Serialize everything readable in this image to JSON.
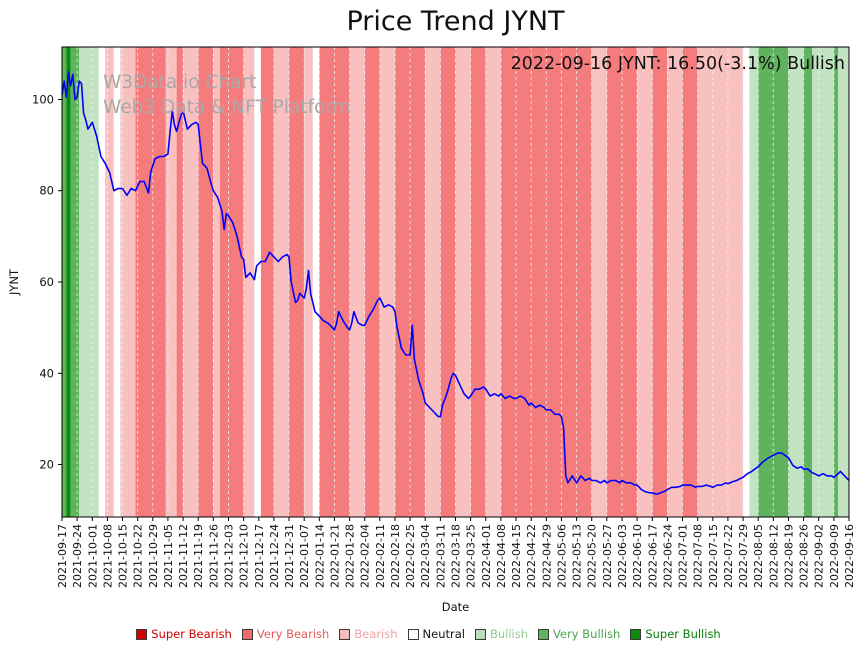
{
  "watermark": {
    "line1": "W3Data.io Chart",
    "line2": "Web3 Data & NFT Platform"
  },
  "annotation": "2022-09-16 JYNT: 16.50(-3.1%) Bullish",
  "chart_data": {
    "type": "line",
    "title": "Price Trend JYNT",
    "xlabel": "Date",
    "ylabel": "JYNT",
    "ylim": [
      8.5,
      111.5
    ],
    "yticks": [
      20,
      40,
      60,
      80,
      100
    ],
    "x_max": 364,
    "x_tick_interval_days": 7,
    "grid": "dashed-vertical",
    "legend_position": "bottom",
    "x_tick_labels": [
      "2021-09-17",
      "2021-09-24",
      "2021-10-01",
      "2021-10-08",
      "2021-10-15",
      "2021-10-22",
      "2021-10-29",
      "2021-11-05",
      "2021-11-12",
      "2021-11-19",
      "2021-11-26",
      "2021-12-03",
      "2021-12-10",
      "2021-12-17",
      "2021-12-24",
      "2021-12-31",
      "2022-01-07",
      "2022-01-14",
      "2022-01-21",
      "2022-01-28",
      "2022-02-04",
      "2022-02-11",
      "2022-02-18",
      "2022-02-25",
      "2022-03-04",
      "2022-03-11",
      "2022-03-18",
      "2022-03-25",
      "2022-04-01",
      "2022-04-08",
      "2022-04-15",
      "2022-04-22",
      "2022-04-29",
      "2022-05-06",
      "2022-05-13",
      "2022-05-20",
      "2022-05-27",
      "2022-06-03",
      "2022-06-10",
      "2022-06-17",
      "2022-06-24",
      "2022-07-01",
      "2022-07-08",
      "2022-07-15",
      "2022-07-22",
      "2022-07-29",
      "2022-08-05",
      "2022-08-12",
      "2022-08-19",
      "2022-08-26",
      "2022-09-02",
      "2022-09-09",
      "2022-09-16"
    ],
    "series": [
      {
        "name": "JYNT",
        "color": "#0000ff",
        "points": [
          [
            0,
            101
          ],
          [
            1,
            104
          ],
          [
            2,
            100.5
          ],
          [
            3,
            106
          ],
          [
            4,
            103
          ],
          [
            5,
            105.5
          ],
          [
            6,
            100
          ],
          [
            7,
            100.5
          ],
          [
            8,
            104
          ],
          [
            9,
            103.5
          ],
          [
            10,
            97
          ],
          [
            11,
            95.5
          ],
          [
            12,
            93.5
          ],
          [
            14,
            95
          ],
          [
            16,
            92
          ],
          [
            18,
            87.5
          ],
          [
            20,
            86
          ],
          [
            22,
            84
          ],
          [
            24,
            80
          ],
          [
            26,
            80.5
          ],
          [
            28,
            80.5
          ],
          [
            30,
            79
          ],
          [
            32,
            80.5
          ],
          [
            34,
            80
          ],
          [
            36,
            82
          ],
          [
            38,
            82
          ],
          [
            40,
            79.5
          ],
          [
            41,
            84
          ],
          [
            43,
            87
          ],
          [
            45,
            87.5
          ],
          [
            47,
            87.5
          ],
          [
            49,
            88
          ],
          [
            50,
            93
          ],
          [
            51,
            97.5
          ],
          [
            52,
            94.5
          ],
          [
            53,
            93
          ],
          [
            55,
            96.5
          ],
          [
            56,
            97.5
          ],
          [
            58,
            93.5
          ],
          [
            60,
            94.5
          ],
          [
            62,
            95
          ],
          [
            63,
            94.5
          ],
          [
            65,
            86
          ],
          [
            67,
            85
          ],
          [
            69,
            81.5
          ],
          [
            70,
            80
          ],
          [
            72,
            78.5
          ],
          [
            74,
            75.5
          ],
          [
            75,
            71.5
          ],
          [
            76,
            75
          ],
          [
            77,
            74.5
          ],
          [
            79,
            73
          ],
          [
            81,
            70
          ],
          [
            83,
            65.5
          ],
          [
            84,
            65
          ],
          [
            85,
            61
          ],
          [
            87,
            62
          ],
          [
            89,
            60.5
          ],
          [
            90,
            63.5
          ],
          [
            92,
            64.5
          ],
          [
            94,
            64.5
          ],
          [
            96,
            66.5
          ],
          [
            98,
            65.5
          ],
          [
            100,
            64.5
          ],
          [
            102,
            65.5
          ],
          [
            104,
            66
          ],
          [
            105,
            65.5
          ],
          [
            106,
            60
          ],
          [
            108,
            55.5
          ],
          [
            109,
            56
          ],
          [
            110,
            57.5
          ],
          [
            112,
            56.5
          ],
          [
            113,
            58.5
          ],
          [
            114,
            62.5
          ],
          [
            115,
            57.5
          ],
          [
            117,
            53.5
          ],
          [
            119,
            52.5
          ],
          [
            121,
            51.5
          ],
          [
            123,
            51
          ],
          [
            125,
            50
          ],
          [
            126,
            49.5
          ],
          [
            127,
            51
          ],
          [
            128,
            53.5
          ],
          [
            130,
            51.5
          ],
          [
            132,
            50
          ],
          [
            133,
            49.5
          ],
          [
            134,
            51
          ],
          [
            135,
            53.5
          ],
          [
            137,
            51
          ],
          [
            139,
            50.5
          ],
          [
            140,
            50.5
          ],
          [
            142,
            52.5
          ],
          [
            144,
            54
          ],
          [
            146,
            56
          ],
          [
            147,
            56.5
          ],
          [
            149,
            54.5
          ],
          [
            151,
            55
          ],
          [
            153,
            54.5
          ],
          [
            154,
            53.5
          ],
          [
            155,
            50
          ],
          [
            157,
            45.5
          ],
          [
            159,
            44
          ],
          [
            161,
            44
          ],
          [
            162,
            50.5
          ],
          [
            163,
            43
          ],
          [
            165,
            38.5
          ],
          [
            167,
            35.5
          ],
          [
            168,
            33.5
          ],
          [
            170,
            32.5
          ],
          [
            172,
            31.5
          ],
          [
            174,
            30.5
          ],
          [
            175,
            30.5
          ],
          [
            176,
            33
          ],
          [
            178,
            35.5
          ],
          [
            180,
            39
          ],
          [
            181,
            40
          ],
          [
            182,
            39.5
          ],
          [
            184,
            37.5
          ],
          [
            186,
            35.5
          ],
          [
            188,
            34.5
          ],
          [
            189,
            35
          ],
          [
            191,
            36.5
          ],
          [
            193,
            36.5
          ],
          [
            195,
            37
          ],
          [
            196,
            36.5
          ],
          [
            198,
            35
          ],
          [
            200,
            35.5
          ],
          [
            202,
            35
          ],
          [
            203,
            35.5
          ],
          [
            205,
            34.5
          ],
          [
            207,
            35
          ],
          [
            209,
            34.5
          ],
          [
            210,
            34.5
          ],
          [
            212,
            35
          ],
          [
            214,
            34.5
          ],
          [
            216,
            33
          ],
          [
            217,
            33.5
          ],
          [
            219,
            32.5
          ],
          [
            221,
            33
          ],
          [
            223,
            32.5
          ],
          [
            224,
            32
          ],
          [
            226,
            32
          ],
          [
            228,
            31
          ],
          [
            230,
            31
          ],
          [
            231,
            30.5
          ],
          [
            232,
            28
          ],
          [
            233,
            17.5
          ],
          [
            234,
            16
          ],
          [
            236,
            17.5
          ],
          [
            238,
            16
          ],
          [
            240,
            17.5
          ],
          [
            242,
            16.5
          ],
          [
            244,
            17
          ],
          [
            245,
            16.5
          ],
          [
            247,
            16.5
          ],
          [
            249,
            16
          ],
          [
            251,
            16.5
          ],
          [
            252,
            16
          ],
          [
            254,
            16.5
          ],
          [
            256,
            16.5
          ],
          [
            258,
            16
          ],
          [
            259,
            16.5
          ],
          [
            261,
            16
          ],
          [
            263,
            16
          ],
          [
            265,
            15.5
          ],
          [
            266,
            15.5
          ],
          [
            268,
            14.5
          ],
          [
            270,
            14
          ],
          [
            272,
            13.8
          ],
          [
            273,
            13.8
          ],
          [
            275,
            13.5
          ],
          [
            277,
            13.8
          ],
          [
            279,
            14.2
          ],
          [
            280,
            14.5
          ],
          [
            282,
            15
          ],
          [
            284,
            15
          ],
          [
            286,
            15.2
          ],
          [
            287,
            15.5
          ],
          [
            289,
            15.5
          ],
          [
            291,
            15.5
          ],
          [
            293,
            15
          ],
          [
            294,
            15.2
          ],
          [
            296,
            15.2
          ],
          [
            298,
            15.5
          ],
          [
            300,
            15.2
          ],
          [
            301,
            15
          ],
          [
            303,
            15.5
          ],
          [
            305,
            15.5
          ],
          [
            307,
            16
          ],
          [
            308,
            15.8
          ],
          [
            310,
            16.2
          ],
          [
            312,
            16.5
          ],
          [
            314,
            17
          ],
          [
            315,
            17.2
          ],
          [
            317,
            18
          ],
          [
            319,
            18.5
          ],
          [
            321,
            19.2
          ],
          [
            322,
            19.5
          ],
          [
            324,
            20.5
          ],
          [
            326,
            21.2
          ],
          [
            328,
            21.8
          ],
          [
            329,
            22
          ],
          [
            331,
            22.5
          ],
          [
            333,
            22.5
          ],
          [
            335,
            21.8
          ],
          [
            336,
            21.5
          ],
          [
            338,
            19.8
          ],
          [
            340,
            19.2
          ],
          [
            342,
            19.5
          ],
          [
            343,
            19
          ],
          [
            345,
            19
          ],
          [
            347,
            18.2
          ],
          [
            349,
            17.8
          ],
          [
            350,
            17.5
          ],
          [
            352,
            18
          ],
          [
            354,
            17.5
          ],
          [
            356,
            17.5
          ],
          [
            357,
            17.2
          ],
          [
            359,
            18
          ],
          [
            360,
            18.5
          ],
          [
            362,
            17.5
          ],
          [
            364,
            16.5
          ]
        ]
      }
    ],
    "band_colors": {
      "super_bearish": "#d40000",
      "very_bearish": "#f47c7c",
      "bearish": "#f9c0c0",
      "neutral": "#ffffff",
      "bullish": "#c2e3c2",
      "very_bullish": "#5fb35f",
      "super_bullish": "#0b8a0b"
    },
    "sentiment_bands": [
      [
        0,
        2,
        "very_bullish"
      ],
      [
        2,
        4,
        "super_bullish"
      ],
      [
        4,
        8,
        "very_bullish"
      ],
      [
        8,
        17,
        "bullish"
      ],
      [
        17,
        20,
        "neutral"
      ],
      [
        20,
        24,
        "bearish"
      ],
      [
        24,
        27,
        "neutral"
      ],
      [
        27,
        34,
        "bearish"
      ],
      [
        34,
        48,
        "very_bearish"
      ],
      [
        48,
        53,
        "bearish"
      ],
      [
        53,
        56,
        "very_bearish"
      ],
      [
        56,
        63,
        "bearish"
      ],
      [
        63,
        70,
        "very_bearish"
      ],
      [
        70,
        73,
        "bearish"
      ],
      [
        73,
        84,
        "very_bearish"
      ],
      [
        84,
        89,
        "bearish"
      ],
      [
        89,
        92,
        "neutral"
      ],
      [
        92,
        98,
        "very_bearish"
      ],
      [
        98,
        105,
        "bearish"
      ],
      [
        105,
        112,
        "very_bearish"
      ],
      [
        112,
        116,
        "bearish"
      ],
      [
        116,
        119,
        "neutral"
      ],
      [
        119,
        133,
        "very_bearish"
      ],
      [
        133,
        140,
        "bearish"
      ],
      [
        140,
        147,
        "very_bearish"
      ],
      [
        147,
        154,
        "bearish"
      ],
      [
        154,
        168,
        "very_bearish"
      ],
      [
        168,
        175,
        "bearish"
      ],
      [
        175,
        182,
        "very_bearish"
      ],
      [
        182,
        189,
        "bearish"
      ],
      [
        189,
        196,
        "very_bearish"
      ],
      [
        196,
        203,
        "bearish"
      ],
      [
        203,
        245,
        "very_bearish"
      ],
      [
        245,
        252,
        "bearish"
      ],
      [
        252,
        266,
        "very_bearish"
      ],
      [
        266,
        273,
        "bearish"
      ],
      [
        273,
        280,
        "very_bearish"
      ],
      [
        280,
        287,
        "bearish"
      ],
      [
        287,
        294,
        "very_bearish"
      ],
      [
        294,
        315,
        "bearish"
      ],
      [
        315,
        318,
        "neutral"
      ],
      [
        318,
        322,
        "bullish"
      ],
      [
        322,
        336,
        "very_bullish"
      ],
      [
        336,
        343,
        "bullish"
      ],
      [
        343,
        347,
        "very_bullish"
      ],
      [
        347,
        357,
        "bullish"
      ],
      [
        357,
        359,
        "very_bullish"
      ],
      [
        359,
        364,
        "bullish"
      ]
    ],
    "legend": [
      {
        "label": "Super Bearish",
        "color": "#d40000",
        "text_color": "#cc0000"
      },
      {
        "label": "Very Bearish",
        "color": "#ee6a6a",
        "text_color": "#e05c5c"
      },
      {
        "label": "Bearish",
        "color": "#f9bcbc",
        "text_color": "#eda3a3"
      },
      {
        "label": "Neutral",
        "color": "#ffffff",
        "text_color": "#111111"
      },
      {
        "label": "Bullish",
        "color": "#b9dfb9",
        "text_color": "#96c996"
      },
      {
        "label": "Very Bullish",
        "color": "#5fb35f",
        "text_color": "#4ea04e"
      },
      {
        "label": "Super Bullish",
        "color": "#0b8a0b",
        "text_color": "#0a7d0a"
      }
    ]
  }
}
